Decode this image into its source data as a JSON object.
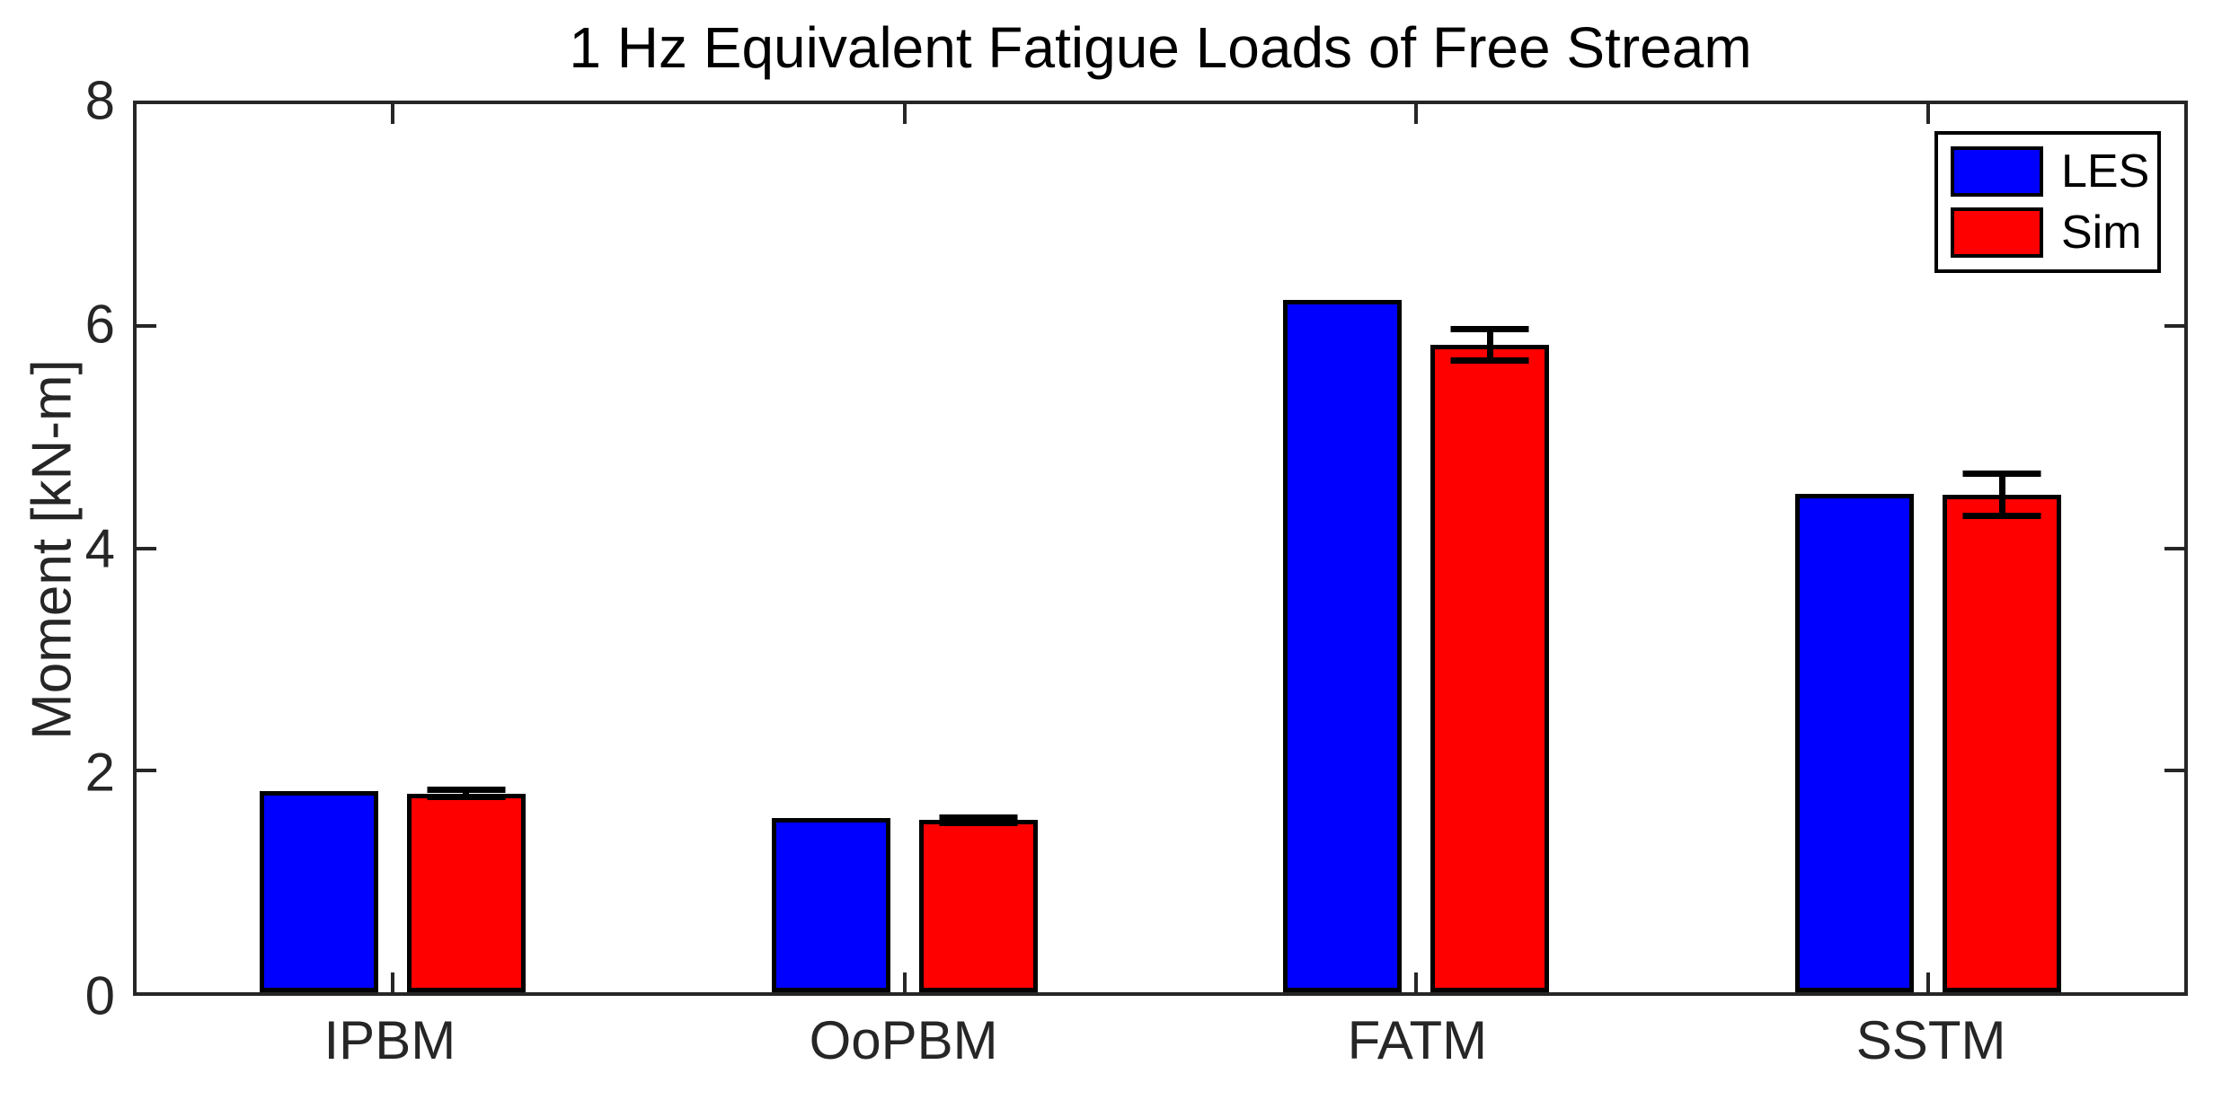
{
  "title": "1 Hz Equivalent Fatigue Loads of Free Stream",
  "ylabel": "Moment [kN-m]",
  "axis_color": "#262626",
  "chart_data": {
    "type": "bar",
    "title": "1 Hz Equivalent Fatigue Loads of Free Stream",
    "xlabel": "",
    "ylabel": "Moment [kN-m]",
    "categories": [
      "IPBM",
      "OoPBM",
      "FATM",
      "SSTM"
    ],
    "series": [
      {
        "name": "LES",
        "color": "#0000ff",
        "values": [
          1.81,
          1.57,
          6.24,
          4.49
        ]
      },
      {
        "name": "Sim",
        "color": "#ff0000",
        "values": [
          1.79,
          1.55,
          5.83,
          4.48
        ],
        "errors": [
          0.06,
          0.05,
          0.17,
          0.22
        ]
      }
    ],
    "ylim": [
      0,
      8
    ],
    "yticks": [
      0,
      2,
      4,
      6,
      8
    ],
    "grid": false,
    "legend_position": "northeast",
    "legend": [
      "LES",
      "Sim"
    ]
  }
}
